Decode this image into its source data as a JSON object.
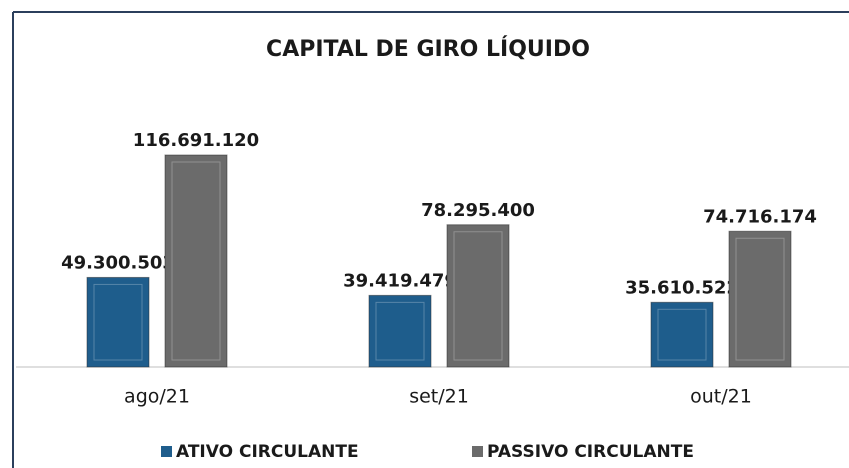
{
  "chart_data": {
    "type": "bar",
    "title": "CAPITAL DE GIRO LÍQUIDO",
    "categories": [
      "ago/21",
      "set/21",
      "out/21"
    ],
    "series": [
      {
        "name": "ATIVO CIRCULANTE",
        "color": "#1f5d8c",
        "values": [
          49300503,
          39419479,
          35610522
        ],
        "value_labels": [
          "49.300.503",
          "39.419.479",
          "35.610.522"
        ]
      },
      {
        "name": "PASSIVO CIRCULANTE",
        "color": "#6b6b6b",
        "values": [
          116691120,
          78295400,
          74716174
        ],
        "value_labels": [
          "116.691.120",
          "78.295.400",
          "74.716.174"
        ]
      }
    ],
    "legend": "bottom"
  }
}
